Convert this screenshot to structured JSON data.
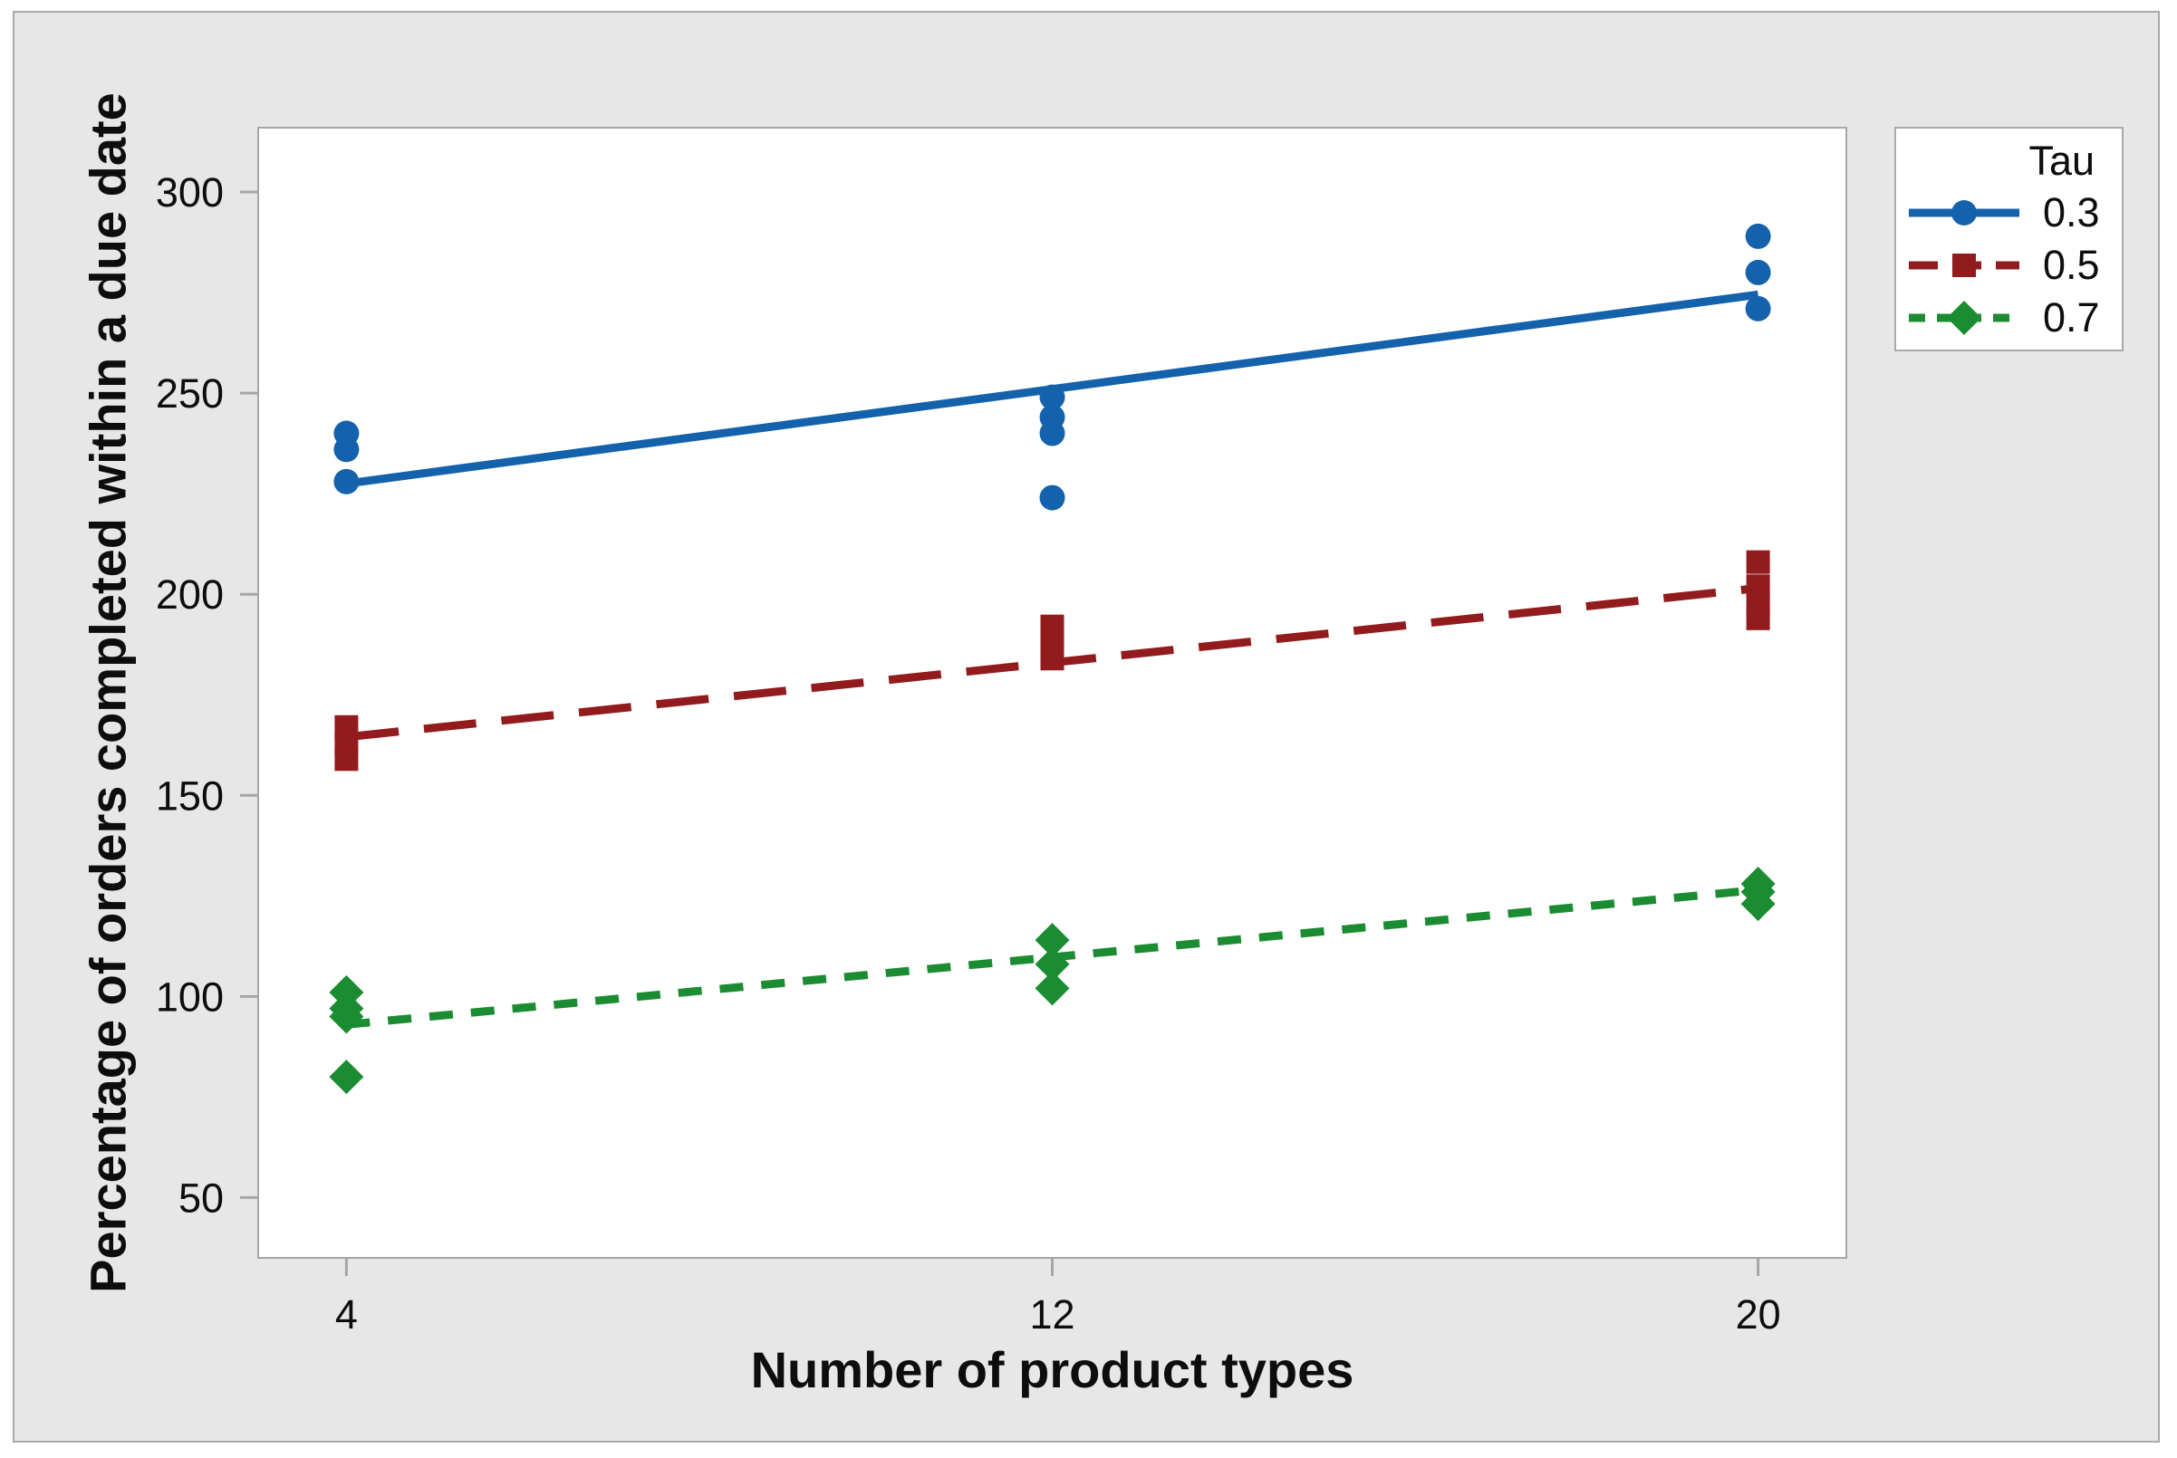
{
  "figure": {
    "background_color": "#e7e7e7",
    "border_color": "#a9a9a9",
    "plot_background_color": "#ffffff",
    "axis_color": "#a6a6a6",
    "text_color": "#0d0d0d"
  },
  "chart_data": {
    "type": "scatter",
    "title": "",
    "xlabel": "Number of product types",
    "ylabel": "Percentage of orders completed within a due date",
    "x_ticks": [
      4,
      12,
      20
    ],
    "y_ticks": [
      50,
      100,
      150,
      200,
      250,
      300
    ],
    "xlim": [
      3,
      21
    ],
    "ylim": [
      35,
      316
    ],
    "grid": false,
    "legend": {
      "title": "Tau",
      "position": "top-right-outside"
    },
    "series": [
      {
        "name": "0.3",
        "tau": 0.3,
        "color": "#1562AC",
        "marker": "circle",
        "line_style": "solid",
        "points": [
          {
            "x": 4,
            "y": 240
          },
          {
            "x": 4,
            "y": 236
          },
          {
            "x": 4,
            "y": 228
          },
          {
            "x": 12,
            "y": 249
          },
          {
            "x": 12,
            "y": 244
          },
          {
            "x": 12,
            "y": 240
          },
          {
            "x": 12,
            "y": 224
          },
          {
            "x": 20,
            "y": 289
          },
          {
            "x": 20,
            "y": 280
          },
          {
            "x": 20,
            "y": 271
          }
        ],
        "fit_line": {
          "x": [
            4,
            20
          ],
          "y": [
            227.5,
            274.5
          ]
        }
      },
      {
        "name": "0.5",
        "tau": 0.5,
        "color": "#921B1D",
        "marker": "square",
        "line_style": "long-dash",
        "points": [
          {
            "x": 4,
            "y": 167
          },
          {
            "x": 4,
            "y": 163
          },
          {
            "x": 4,
            "y": 159
          },
          {
            "x": 12,
            "y": 192
          },
          {
            "x": 12,
            "y": 188
          },
          {
            "x": 12,
            "y": 184
          },
          {
            "x": 20,
            "y": 208
          },
          {
            "x": 20,
            "y": 202
          },
          {
            "x": 20,
            "y": 198
          },
          {
            "x": 20,
            "y": 194
          }
        ],
        "fit_line": {
          "x": [
            4,
            20
          ],
          "y": [
            164.5,
            201.5
          ]
        }
      },
      {
        "name": "0.7",
        "tau": 0.7,
        "color": "#1B8C32",
        "marker": "diamond",
        "line_style": "short-dash",
        "points": [
          {
            "x": 4,
            "y": 101
          },
          {
            "x": 4,
            "y": 97
          },
          {
            "x": 4,
            "y": 95
          },
          {
            "x": 4,
            "y": 80
          },
          {
            "x": 12,
            "y": 114
          },
          {
            "x": 12,
            "y": 108
          },
          {
            "x": 12,
            "y": 102
          },
          {
            "x": 20,
            "y": 128
          },
          {
            "x": 20,
            "y": 126
          },
          {
            "x": 20,
            "y": 123
          }
        ],
        "fit_line": {
          "x": [
            4,
            20
          ],
          "y": [
            93,
            126.5
          ]
        }
      }
    ]
  }
}
